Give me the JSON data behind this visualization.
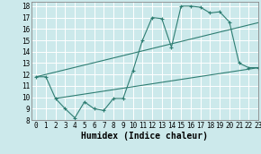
{
  "bg_color": "#cce9eb",
  "grid_color": "#ffffff",
  "line_color": "#2e7d72",
  "line1_x": [
    0,
    1,
    2,
    3,
    4,
    5,
    6,
    7,
    8,
    9,
    10,
    11,
    12,
    13,
    14,
    15,
    16,
    17,
    18,
    19,
    20,
    21,
    22,
    23
  ],
  "line1_y": [
    11.8,
    11.8,
    9.9,
    9.0,
    8.2,
    9.6,
    9.0,
    8.85,
    9.9,
    9.9,
    12.3,
    15.0,
    17.0,
    16.9,
    14.4,
    18.0,
    18.0,
    17.9,
    17.4,
    17.5,
    16.6,
    13.0,
    12.6,
    12.6
  ],
  "line2_x": [
    0,
    23
  ],
  "line2_y": [
    11.8,
    16.55
  ],
  "line3_x": [
    2,
    23
  ],
  "line3_y": [
    9.9,
    12.6
  ],
  "xlabel": "Humidex (Indice chaleur)",
  "xlim": [
    -0.5,
    23
  ],
  "ylim": [
    8,
    18.4
  ],
  "xticks": [
    0,
    1,
    2,
    3,
    4,
    5,
    6,
    7,
    8,
    9,
    10,
    11,
    12,
    13,
    14,
    15,
    16,
    17,
    18,
    19,
    20,
    21,
    22,
    23
  ],
  "yticks": [
    8,
    9,
    10,
    11,
    12,
    13,
    14,
    15,
    16,
    17,
    18
  ],
  "tick_fontsize": 5.5,
  "xlabel_fontsize": 7.0
}
